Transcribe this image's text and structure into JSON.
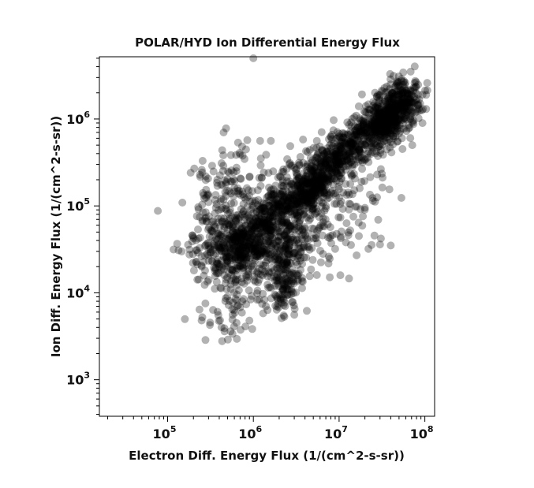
{
  "chart_data": {
    "type": "scatter",
    "title": "POLAR/HYD  Ion Differential Energy Flux",
    "xlabel": "Electron Diff. Energy Flux (1/(cm^2-s-sr))",
    "ylabel": "Ion Diff. Energy Flux (1/(cm^2-s-sr))",
    "xscale": "log",
    "yscale": "log",
    "xlim": [
      16000,
      130000000
    ],
    "ylim": [
      380,
      5200000
    ],
    "x_ticks": [
      {
        "value": 100000,
        "base": "10",
        "exp": "5"
      },
      {
        "value": 1000000,
        "base": "10",
        "exp": "6"
      },
      {
        "value": 10000000,
        "base": "10",
        "exp": "7"
      },
      {
        "value": 100000000,
        "base": "10",
        "exp": "8"
      }
    ],
    "y_ticks": [
      {
        "value": 1000,
        "base": "10",
        "exp": "3"
      },
      {
        "value": 10000,
        "base": "10",
        "exp": "4"
      },
      {
        "value": 100000,
        "base": "10",
        "exp": "5"
      },
      {
        "value": 1000000,
        "base": "10",
        "exp": "6"
      }
    ],
    "grid": false,
    "marker_color": "#000000",
    "marker_alpha": 0.3,
    "clusters": [
      {
        "x": [
          30000000,
          60000000
        ],
        "y": [
          700000,
          2000000
        ],
        "n": 520,
        "spread": 0.12
      },
      {
        "x": [
          8000000,
          30000000
        ],
        "y": [
          300000,
          1000000
        ],
        "n": 380,
        "spread": 0.12
      },
      {
        "x": [
          2000000,
          8000000
        ],
        "y": [
          90000,
          300000
        ],
        "n": 420,
        "spread": 0.14
      },
      {
        "x": [
          700000,
          2000000
        ],
        "y": [
          30000,
          90000
        ],
        "n": 360,
        "spread": 0.16
      },
      {
        "x": [
          300000,
          900000
        ],
        "y": [
          22000,
          50000
        ],
        "n": 300,
        "spread": 0.18
      },
      {
        "x": [
          2200000,
          2600000
        ],
        "y": [
          7000,
          40000
        ],
        "n": 120,
        "spread": 0.06
      },
      {
        "x": [
          4000000,
          7000000
        ],
        "y": [
          110000,
          260000
        ],
        "n": 120,
        "spread": 0.08
      },
      {
        "x": [
          2000000,
          5000000
        ],
        "y": [
          30000,
          100000
        ],
        "n": 160,
        "spread": 0.22
      },
      {
        "x": [
          1000000,
          4000000
        ],
        "y": [
          15000,
          40000
        ],
        "n": 110,
        "spread": 0.2
      },
      {
        "x": [
          300000,
          600000
        ],
        "y": [
          70000,
          250000
        ],
        "n": 130,
        "spread": 0.2
      },
      {
        "x": [
          400000,
          900000
        ],
        "y": [
          4500,
          12000
        ],
        "n": 70,
        "spread": 0.16
      },
      {
        "x": [
          8000000,
          20000000
        ],
        "y": [
          40000,
          200000
        ],
        "n": 70,
        "spread": 0.2
      }
    ],
    "outliers": [
      [
        1000000,
        5000000
      ],
      [
        480000,
        780000
      ],
      [
        450000,
        700000
      ],
      [
        850000,
        570000
      ],
      [
        1200000,
        560000
      ],
      [
        1600000,
        560000
      ],
      [
        3800000,
        580000
      ],
      [
        5500000,
        560000
      ],
      [
        250000,
        260000
      ],
      [
        330000,
        290000
      ],
      [
        380000,
        200000
      ],
      [
        1500000,
        240000
      ],
      [
        1700000,
        250000
      ],
      [
        12000000,
        260000
      ],
      [
        14000000,
        220000
      ],
      [
        20000000,
        95000
      ],
      [
        17000000,
        45000
      ],
      [
        22000000,
        32000
      ],
      [
        30000000,
        36000
      ],
      [
        40000000,
        35000
      ],
      [
        16000000,
        27000
      ],
      [
        12000000,
        38000
      ],
      [
        9000000,
        32000
      ],
      [
        220000,
        31000
      ],
      [
        240000,
        43000
      ],
      [
        250000,
        20000
      ],
      [
        460000,
        3600
      ],
      [
        700000,
        6800
      ],
      [
        900000,
        4800
      ],
      [
        1300000,
        5800
      ],
      [
        2300000,
        5300
      ],
      [
        3000000,
        5600
      ],
      [
        4200000,
        6200
      ],
      [
        5500000,
        16000
      ],
      [
        6500000,
        28000
      ],
      [
        2800000,
        17000
      ],
      [
        3400000,
        27000
      ],
      [
        1800000,
        12000
      ],
      [
        1400000,
        7000
      ],
      [
        620000,
        8500
      ]
    ]
  }
}
